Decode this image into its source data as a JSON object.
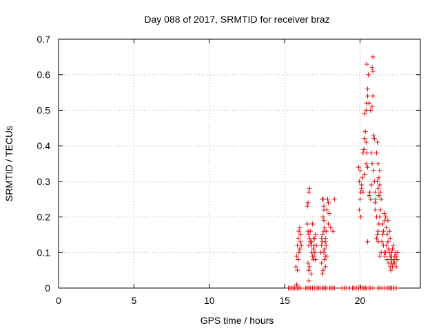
{
  "chart_data": {
    "type": "scatter",
    "title": "Day 088 of 2017, SRMTID for receiver braz",
    "xlabel": "GPS time / hours",
    "ylabel": "SRMTID / TECUs",
    "xlim": [
      0,
      24
    ],
    "ylim": [
      0,
      0.7
    ],
    "xticks": [
      0,
      5,
      10,
      15,
      20
    ],
    "yticks": [
      0,
      0.1,
      0.2,
      0.3,
      0.4,
      0.5,
      0.6,
      0.7
    ],
    "xtick_labels": [
      "0",
      "5",
      "10",
      "15",
      "20"
    ],
    "ytick_labels": [
      "0",
      "0.1",
      "0.2",
      "0.3",
      "0.4",
      "0.5",
      "0.6",
      "0.7"
    ],
    "grid": true,
    "marker": "+",
    "color": "#e00000",
    "series": [
      {
        "name": "SRMTID",
        "points": [
          [
            15.25,
            0
          ],
          [
            15.35,
            0
          ],
          [
            15.45,
            0
          ],
          [
            15.55,
            0
          ],
          [
            15.65,
            0
          ],
          [
            15.75,
            0
          ],
          [
            15.85,
            0
          ],
          [
            15.95,
            0
          ],
          [
            16.05,
            0
          ],
          [
            16.4,
            0
          ],
          [
            16.5,
            0
          ],
          [
            16.6,
            0
          ],
          [
            16.7,
            0
          ],
          [
            16.85,
            0
          ],
          [
            17.0,
            0
          ],
          [
            17.15,
            0
          ],
          [
            17.25,
            0
          ],
          [
            17.35,
            0
          ],
          [
            17.5,
            0
          ],
          [
            17.6,
            0
          ],
          [
            17.7,
            0
          ],
          [
            17.8,
            0
          ],
          [
            18.0,
            0
          ],
          [
            18.1,
            0
          ],
          [
            18.2,
            0
          ],
          [
            18.3,
            0
          ],
          [
            18.8,
            0
          ],
          [
            18.95,
            0
          ],
          [
            19.1,
            0
          ],
          [
            19.3,
            0
          ],
          [
            19.5,
            0
          ],
          [
            19.6,
            0
          ],
          [
            19.75,
            0
          ],
          [
            19.9,
            0
          ],
          [
            20.05,
            0
          ],
          [
            20.15,
            0
          ],
          [
            20.25,
            0
          ],
          [
            20.35,
            0
          ],
          [
            20.45,
            0
          ],
          [
            20.6,
            0
          ],
          [
            20.7,
            0
          ],
          [
            20.85,
            0
          ],
          [
            21.2,
            0
          ],
          [
            21.3,
            0
          ],
          [
            21.45,
            0
          ],
          [
            21.6,
            0
          ],
          [
            21.8,
            0
          ],
          [
            21.9,
            0
          ],
          [
            22.0,
            0
          ],
          [
            22.1,
            0
          ],
          [
            22.25,
            0
          ],
          [
            22.4,
            0
          ],
          [
            15.85,
            0.12
          ],
          [
            15.9,
            0.14
          ],
          [
            15.95,
            0.16
          ],
          [
            16.0,
            0.17
          ],
          [
            16.05,
            0.13
          ],
          [
            15.8,
            0.09
          ],
          [
            15.75,
            0.06
          ],
          [
            15.85,
            0.05
          ],
          [
            15.9,
            0.08
          ],
          [
            16.0,
            0.11
          ],
          [
            16.05,
            0.15
          ],
          [
            15.95,
            0.1
          ],
          [
            15.8,
            0.01
          ],
          [
            16.1,
            0.12
          ],
          [
            16.5,
            0.23
          ],
          [
            16.55,
            0.24
          ],
          [
            16.6,
            0.27
          ],
          [
            16.65,
            0.28
          ],
          [
            16.5,
            0.18
          ],
          [
            16.55,
            0.16
          ],
          [
            16.6,
            0.15
          ],
          [
            16.65,
            0.14
          ],
          [
            16.7,
            0.13
          ],
          [
            16.75,
            0.12
          ],
          [
            16.8,
            0.1
          ],
          [
            16.85,
            0.09
          ],
          [
            16.9,
            0.08
          ],
          [
            16.95,
            0.12
          ],
          [
            17.0,
            0.14
          ],
          [
            16.6,
            0.12
          ],
          [
            16.7,
            0.16
          ],
          [
            16.8,
            0.13
          ],
          [
            16.9,
            0.11
          ],
          [
            16.95,
            0.09
          ],
          [
            17.0,
            0.1
          ],
          [
            17.05,
            0.15
          ],
          [
            16.55,
            0.07
          ],
          [
            16.6,
            0.05
          ],
          [
            16.75,
            0.04
          ],
          [
            16.85,
            0.18
          ],
          [
            17.05,
            0.08
          ],
          [
            16.6,
            0.02
          ],
          [
            16.65,
            0.06
          ],
          [
            16.9,
            0.14
          ],
          [
            17.1,
            0.12
          ],
          [
            17.4,
            0.1
          ],
          [
            17.45,
            0.12
          ],
          [
            17.5,
            0.15
          ],
          [
            17.55,
            0.2
          ],
          [
            17.6,
            0.22
          ],
          [
            17.5,
            0.25
          ],
          [
            17.55,
            0.25
          ],
          [
            17.6,
            0.23
          ],
          [
            17.65,
            0.17
          ],
          [
            17.7,
            0.14
          ],
          [
            17.75,
            0.12
          ],
          [
            17.6,
            0.1
          ],
          [
            17.65,
            0.08
          ],
          [
            17.7,
            0.06
          ],
          [
            17.55,
            0.05
          ],
          [
            17.5,
            0.04
          ],
          [
            17.45,
            0.07
          ],
          [
            17.65,
            0.11
          ],
          [
            17.7,
            0.13
          ],
          [
            17.75,
            0.16
          ],
          [
            17.8,
            0.22
          ],
          [
            17.85,
            0.25
          ],
          [
            17.9,
            0.24
          ],
          [
            17.95,
            0.21
          ],
          [
            17.9,
            0.18
          ],
          [
            17.5,
            0.13
          ],
          [
            17.6,
            0.16
          ],
          [
            17.7,
            0.09
          ],
          [
            18.05,
            0.17
          ],
          [
            18.3,
            0.25
          ],
          [
            18.2,
            0.16
          ],
          [
            17.45,
            0.14
          ],
          [
            17.6,
            0.19
          ],
          [
            17.8,
            0.09
          ],
          [
            19.9,
            0.34
          ],
          [
            19.95,
            0.3
          ],
          [
            20.0,
            0.33
          ],
          [
            20.05,
            0.27
          ],
          [
            20.0,
            0.25
          ],
          [
            20.05,
            0.2
          ],
          [
            19.95,
            0.22
          ],
          [
            20.1,
            0.28
          ],
          [
            20.15,
            0.31
          ],
          [
            20.2,
            0.38
          ],
          [
            20.25,
            0.39
          ],
          [
            20.3,
            0.42
          ],
          [
            20.35,
            0.44
          ],
          [
            20.4,
            0.41
          ],
          [
            20.45,
            0.38
          ],
          [
            20.3,
            0.49
          ],
          [
            20.4,
            0.5
          ],
          [
            20.45,
            0.52
          ],
          [
            20.5,
            0.54
          ],
          [
            20.55,
            0.6
          ],
          [
            20.45,
            0.63
          ],
          [
            20.5,
            0.56
          ],
          [
            20.6,
            0.52
          ],
          [
            20.7,
            0.5
          ],
          [
            20.8,
            0.51
          ],
          [
            20.85,
            0.54
          ],
          [
            20.85,
            0.61
          ],
          [
            20.8,
            0.62
          ],
          [
            20.85,
            0.65
          ],
          [
            20.9,
            0.43
          ],
          [
            20.95,
            0.42
          ],
          [
            20.75,
            0.38
          ],
          [
            20.8,
            0.35
          ],
          [
            20.9,
            0.33
          ],
          [
            20.95,
            0.3
          ],
          [
            21.0,
            0.27
          ],
          [
            21.05,
            0.25
          ],
          [
            21.0,
            0.24
          ],
          [
            21.1,
            0.38
          ],
          [
            21.15,
            0.41
          ],
          [
            21.2,
            0.35
          ],
          [
            21.15,
            0.3
          ],
          [
            21.2,
            0.28
          ],
          [
            21.25,
            0.26
          ],
          [
            21.3,
            0.29
          ],
          [
            21.25,
            0.31
          ],
          [
            21.3,
            0.33
          ],
          [
            21.35,
            0.27
          ],
          [
            21.4,
            0.25
          ],
          [
            21.35,
            0.22
          ],
          [
            21.3,
            0.2
          ],
          [
            21.25,
            0.18
          ],
          [
            21.2,
            0.16
          ],
          [
            21.15,
            0.15
          ],
          [
            21.1,
            0.14
          ],
          [
            21.3,
            0.09
          ],
          [
            21.4,
            0.1
          ],
          [
            21.45,
            0.13
          ],
          [
            21.5,
            0.18
          ],
          [
            21.55,
            0.16
          ],
          [
            21.6,
            0.21
          ],
          [
            21.65,
            0.19
          ],
          [
            21.5,
            0.15
          ],
          [
            21.55,
            0.12
          ],
          [
            21.6,
            0.1
          ],
          [
            21.65,
            0.09
          ],
          [
            20.3,
            0.32
          ],
          [
            20.4,
            0.35
          ],
          [
            20.5,
            0.34
          ],
          [
            20.6,
            0.26
          ],
          [
            20.7,
            0.25
          ],
          [
            20.5,
            0.13
          ],
          [
            20.65,
            0.27
          ],
          [
            20.75,
            0.29
          ],
          [
            21.0,
            0.22
          ],
          [
            21.1,
            0.2
          ],
          [
            21.2,
            0.13
          ],
          [
            20.2,
            0.27
          ],
          [
            20.1,
            0.29
          ],
          [
            21.7,
            0.2
          ],
          [
            21.75,
            0.17
          ],
          [
            21.8,
            0.15
          ],
          [
            21.85,
            0.13
          ],
          [
            21.9,
            0.11
          ],
          [
            21.95,
            0.1
          ],
          [
            22.0,
            0.09
          ],
          [
            22.05,
            0.08
          ],
          [
            22.1,
            0.07
          ],
          [
            22.15,
            0.06
          ],
          [
            22.2,
            0.07
          ],
          [
            22.25,
            0.08
          ],
          [
            22.3,
            0.09
          ],
          [
            22.35,
            0.1
          ],
          [
            22.4,
            0.09
          ],
          [
            22.45,
            0.08
          ],
          [
            22.5,
            0.1
          ],
          [
            21.8,
            0.08
          ],
          [
            21.9,
            0.07
          ],
          [
            22.0,
            0.06
          ],
          [
            22.05,
            0.05
          ],
          [
            22.1,
            0.09
          ],
          [
            22.15,
            0.11
          ],
          [
            22.2,
            0.12
          ],
          [
            21.85,
            0.19
          ],
          [
            21.95,
            0.16
          ],
          [
            22.0,
            0.14
          ],
          [
            22.1,
            0.1
          ],
          [
            22.3,
            0.07
          ],
          [
            22.4,
            0.06
          ],
          [
            21.75,
            0.12
          ],
          [
            21.7,
            0.1
          ]
        ]
      }
    ]
  }
}
